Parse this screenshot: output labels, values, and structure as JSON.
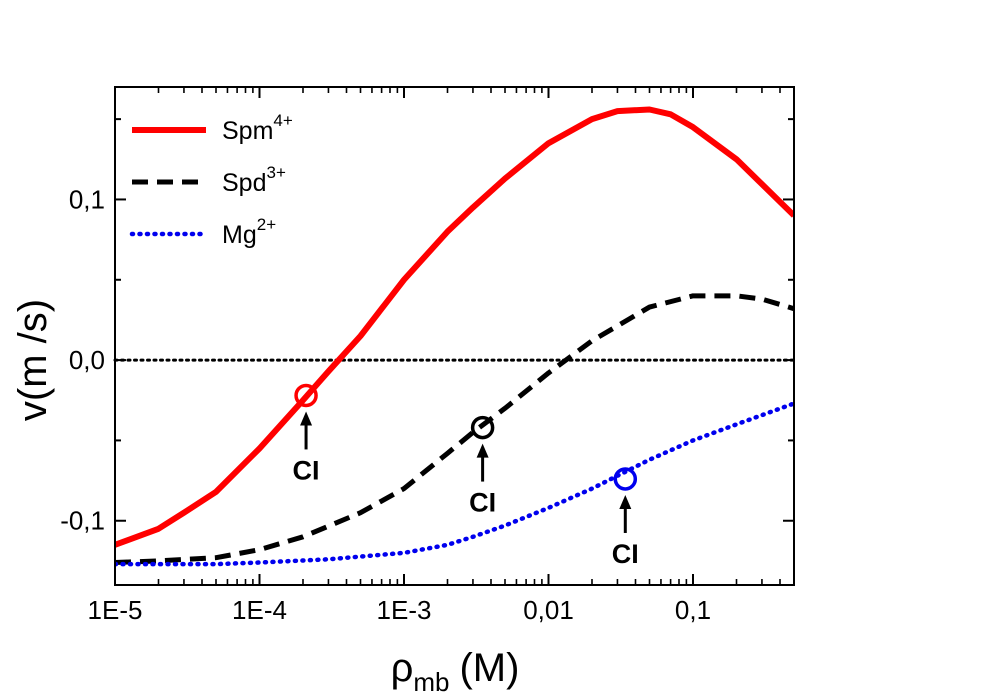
{
  "chart_data": {
    "type": "line",
    "xscale": "log",
    "xlim": [
      1e-05,
      0.5
    ],
    "ylim": [
      -0.14,
      0.17
    ],
    "xlabel": {
      "main": "ρ",
      "sub": "mb",
      "unit": "(M)"
    },
    "ylabel": "v(m /s)",
    "x_ticks": [
      {
        "value": 1e-05,
        "label": "1E-5"
      },
      {
        "value": 0.0001,
        "label": "1E-4"
      },
      {
        "value": 0.001,
        "label": "1E-3"
      },
      {
        "value": 0.01,
        "label": "0,01"
      },
      {
        "value": 0.1,
        "label": "0,1"
      }
    ],
    "y_ticks": [
      {
        "value": -0.1,
        "label": "-0,1"
      },
      {
        "value": 0.0,
        "label": "0,0"
      },
      {
        "value": 0.1,
        "label": "0,1"
      }
    ],
    "legend_position": "top-left",
    "reference_line": {
      "y": 0.0,
      "style": "dotted",
      "color": "#000000"
    },
    "series": [
      {
        "name": "Spm",
        "charge": "4+",
        "color": "#ff0000",
        "style": "solid",
        "x": [
          1e-05,
          2e-05,
          3e-05,
          5e-05,
          0.0001,
          0.0002,
          0.0003,
          0.0005,
          0.001,
          0.002,
          0.003,
          0.005,
          0.01,
          0.02,
          0.03,
          0.05,
          0.07,
          0.1,
          0.2,
          0.5
        ],
        "y": [
          -0.115,
          -0.105,
          -0.095,
          -0.082,
          -0.055,
          -0.025,
          -0.007,
          0.015,
          0.05,
          0.08,
          0.095,
          0.113,
          0.135,
          0.15,
          0.155,
          0.156,
          0.153,
          0.145,
          0.125,
          0.09
        ]
      },
      {
        "name": "Spd",
        "charge": "3+",
        "color": "#000000",
        "style": "dashed",
        "x": [
          1e-05,
          2e-05,
          5e-05,
          0.0001,
          0.0002,
          0.0005,
          0.001,
          0.002,
          0.003,
          0.005,
          0.01,
          0.02,
          0.05,
          0.1,
          0.2,
          0.3,
          0.5
        ],
        "y": [
          -0.126,
          -0.125,
          -0.123,
          -0.118,
          -0.11,
          -0.095,
          -0.08,
          -0.058,
          -0.045,
          -0.03,
          -0.008,
          0.012,
          0.033,
          0.04,
          0.04,
          0.038,
          0.032
        ]
      },
      {
        "name": "Mg",
        "charge": "2+",
        "color": "#0000ee",
        "style": "dotted",
        "x": [
          1e-05,
          2e-05,
          5e-05,
          0.0001,
          0.0003,
          0.001,
          0.002,
          0.003,
          0.005,
          0.01,
          0.02,
          0.03,
          0.05,
          0.1,
          0.2,
          0.5
        ],
        "y": [
          -0.127,
          -0.127,
          -0.127,
          -0.126,
          -0.124,
          -0.12,
          -0.115,
          -0.11,
          -0.103,
          -0.092,
          -0.08,
          -0.072,
          -0.062,
          -0.05,
          -0.04,
          -0.027
        ]
      }
    ],
    "annotations": [
      {
        "label": "CI",
        "x": 0.00021,
        "y": -0.022,
        "series": "Spm"
      },
      {
        "label": "CI",
        "x": 0.0035,
        "y": -0.042,
        "series": "Spd"
      },
      {
        "label": "CI",
        "x": 0.034,
        "y": -0.074,
        "series": "Mg"
      }
    ]
  }
}
